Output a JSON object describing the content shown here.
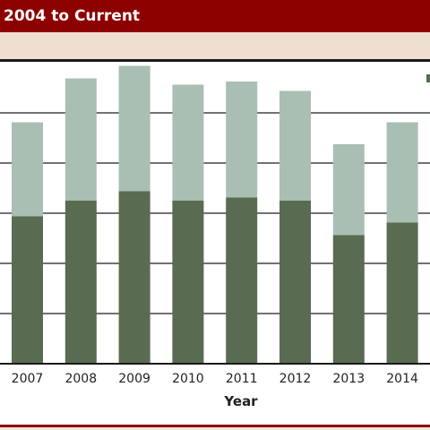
{
  "header": {
    "title": "2004 to Current"
  },
  "chart_data": {
    "type": "bar",
    "stacked": true,
    "categories": [
      "2007",
      "2008",
      "2009",
      "2010",
      "2011",
      "2012",
      "2013",
      "2014"
    ],
    "series": [
      {
        "values": [
          47,
          52,
          55,
          52,
          53,
          52,
          41,
          45
        ]
      },
      {
        "values": [
          30,
          39,
          40,
          37,
          37,
          35,
          29,
          32
        ]
      }
    ],
    "colors": [
      "#596b50",
      "#a9bfb3"
    ],
    "xlabel": "Year",
    "ylabel": "",
    "ylim": [
      0,
      96
    ],
    "grid": true,
    "legend_position": "top-right"
  }
}
